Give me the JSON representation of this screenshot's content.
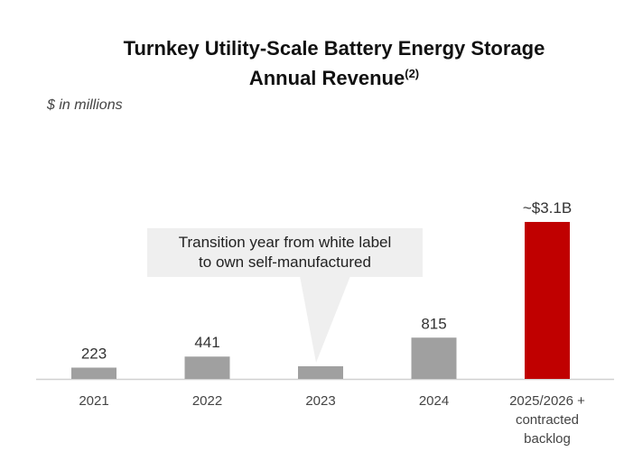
{
  "chart_data": {
    "type": "bar",
    "title_line1": "Turnkey Utility-Scale Battery Energy Storage",
    "title_line2": "Annual Revenue",
    "title_footnote": "(2)",
    "unit_label": "$ in millions",
    "categories": [
      "2021",
      "2022",
      "2023",
      "2024",
      "2025/2026 + contracted backlog"
    ],
    "category_lines": [
      [
        "2021"
      ],
      [
        "2022"
      ],
      [
        "2023"
      ],
      [
        "2024"
      ],
      [
        "2025/2026 +",
        "contracted",
        "backlog"
      ]
    ],
    "values": [
      223,
      441,
      250,
      815,
      3100
    ],
    "data_labels": [
      "223",
      "441",
      "",
      "815",
      "~$3.1B"
    ],
    "bar_colors": [
      "#a0a0a0",
      "#a0a0a0",
      "#a0a0a0",
      "#a0a0a0",
      "#c00000"
    ],
    "annotation": {
      "line1": "Transition year from white label",
      "line2": "to own self-manufactured",
      "points_to": "2023"
    },
    "ylim": [
      0,
      3100
    ],
    "grid": false,
    "legend": "none"
  }
}
